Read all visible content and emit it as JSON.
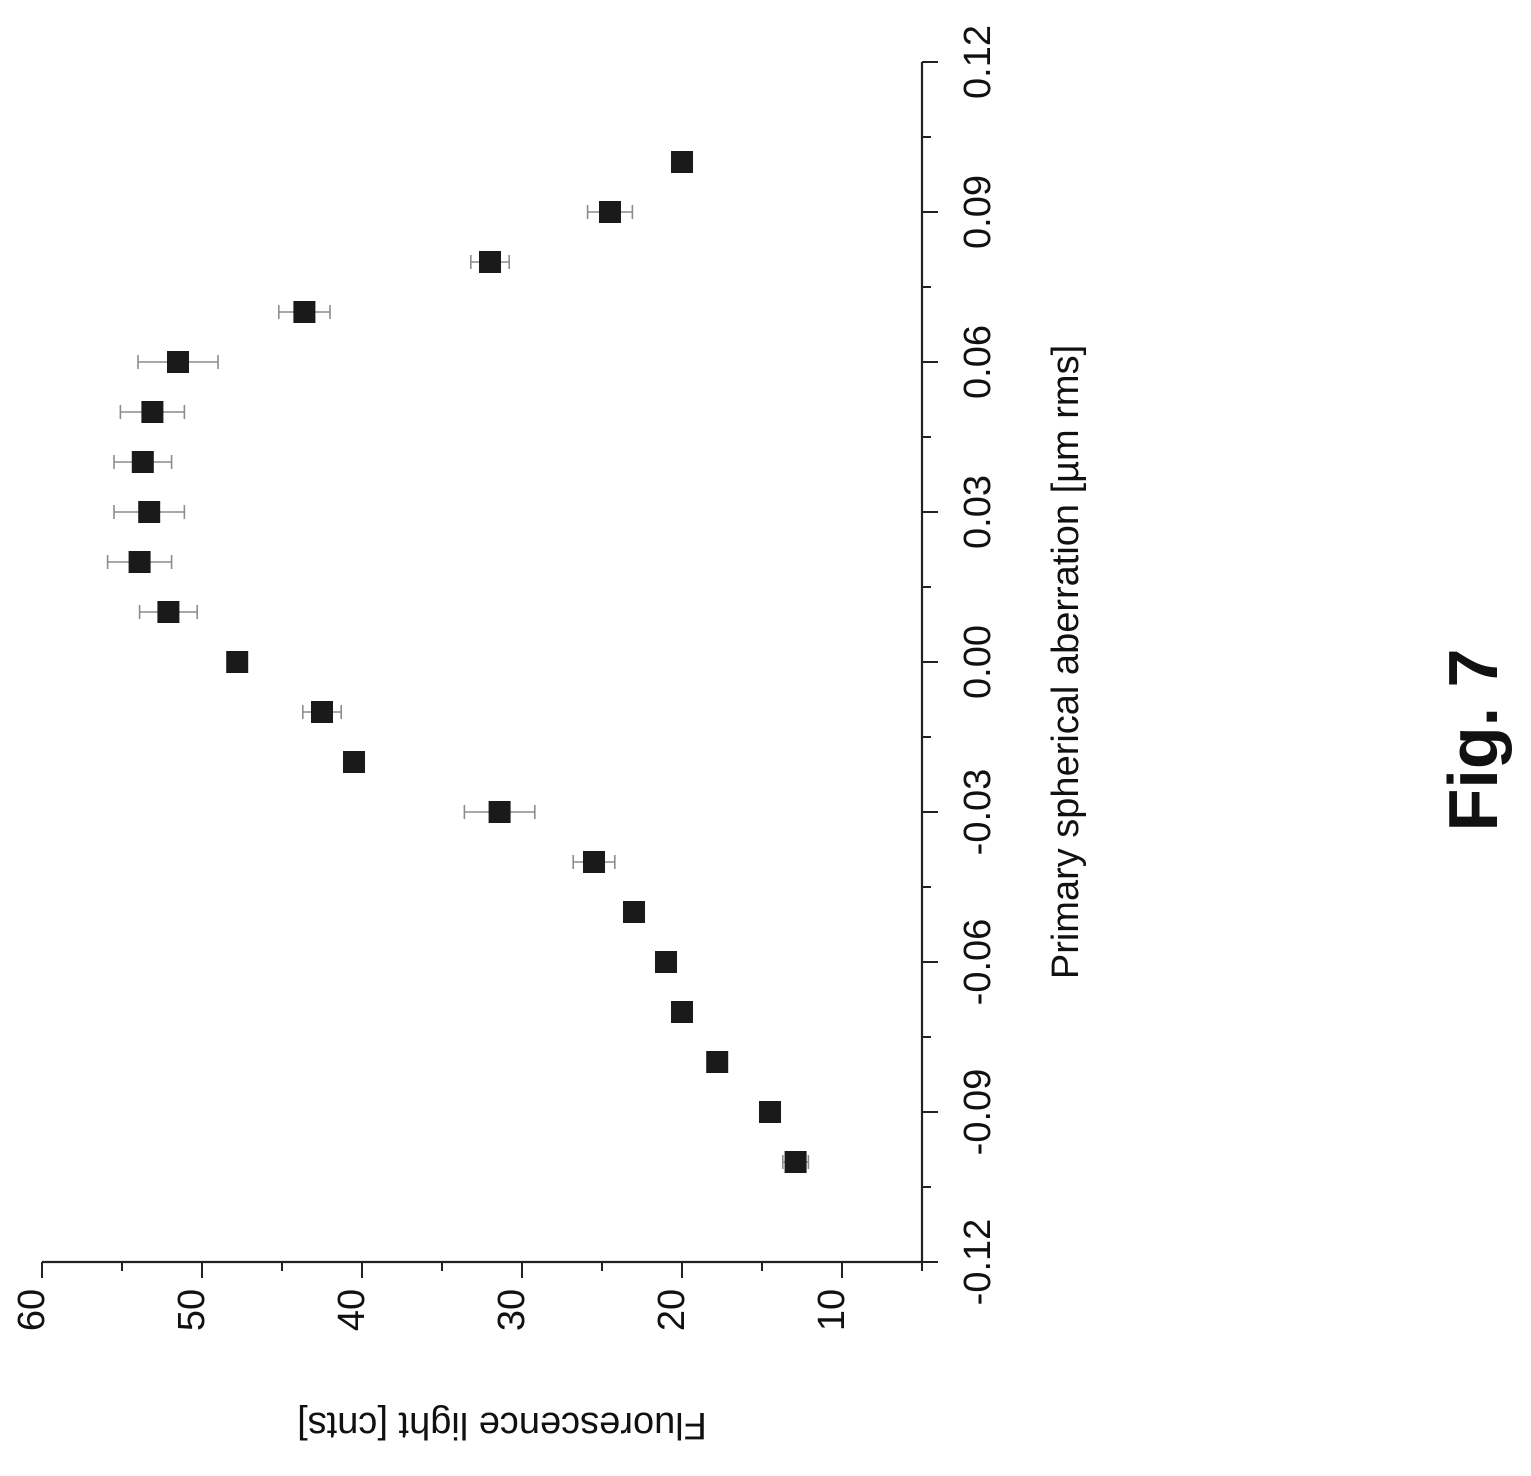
{
  "figure_label": "Fig. 7",
  "chart_data": {
    "type": "scatter",
    "xlabel": "Primary spherical aberration [µm rms]",
    "ylabel": "Fluorescence light [cnts]",
    "xlim": [
      -0.12,
      0.12
    ],
    "ylim": [
      5,
      60
    ],
    "x_ticks": [
      -0.12,
      -0.09,
      -0.06,
      -0.03,
      0.0,
      0.03,
      0.06,
      0.09,
      0.12
    ],
    "x_tick_labels": [
      "-0.12",
      "-0.09",
      "-0.06",
      "-0.03",
      "0.00",
      "0.03",
      "0.06",
      "0.09",
      "0.12"
    ],
    "y_ticks": [
      10,
      20,
      30,
      40,
      50,
      60
    ],
    "y_tick_labels": [
      "10",
      "20",
      "30",
      "40",
      "50",
      "60"
    ],
    "marker": "square",
    "marker_color": "#1a1a1a",
    "errorbar_color": "#8c8c8c",
    "grid": false,
    "orientation": "rotated 90 degrees counter-clockwise",
    "series": [
      {
        "points": [
          {
            "x": -0.1,
            "y": 12.9,
            "err": 0.8
          },
          {
            "x": -0.09,
            "y": 14.5,
            "err": 0.5
          },
          {
            "x": -0.08,
            "y": 17.8,
            "err": 0.5
          },
          {
            "x": -0.07,
            "y": 20.0,
            "err": 0.5
          },
          {
            "x": -0.06,
            "y": 21.0,
            "err": 0.5
          },
          {
            "x": -0.05,
            "y": 23.0,
            "err": 0.6
          },
          {
            "x": -0.04,
            "y": 25.5,
            "err": 1.3
          },
          {
            "x": -0.03,
            "y": 31.4,
            "err": 2.2
          },
          {
            "x": -0.02,
            "y": 40.5,
            "err": 0.6
          },
          {
            "x": -0.01,
            "y": 42.5,
            "err": 1.2
          },
          {
            "x": 0.0,
            "y": 47.8,
            "err": 0.6
          },
          {
            "x": 0.01,
            "y": 52.1,
            "err": 1.8
          },
          {
            "x": 0.02,
            "y": 53.9,
            "err": 2.0
          },
          {
            "x": 0.03,
            "y": 53.3,
            "err": 2.2
          },
          {
            "x": 0.04,
            "y": 53.7,
            "err": 1.8
          },
          {
            "x": 0.05,
            "y": 53.1,
            "err": 2.0
          },
          {
            "x": 0.06,
            "y": 51.5,
            "err": 2.5
          },
          {
            "x": 0.07,
            "y": 43.6,
            "err": 1.6
          },
          {
            "x": 0.08,
            "y": 32.0,
            "err": 1.2
          },
          {
            "x": 0.09,
            "y": 24.5,
            "err": 1.4
          },
          {
            "x": 0.1,
            "y": 20.0,
            "err": 0.5
          }
        ]
      }
    ]
  }
}
